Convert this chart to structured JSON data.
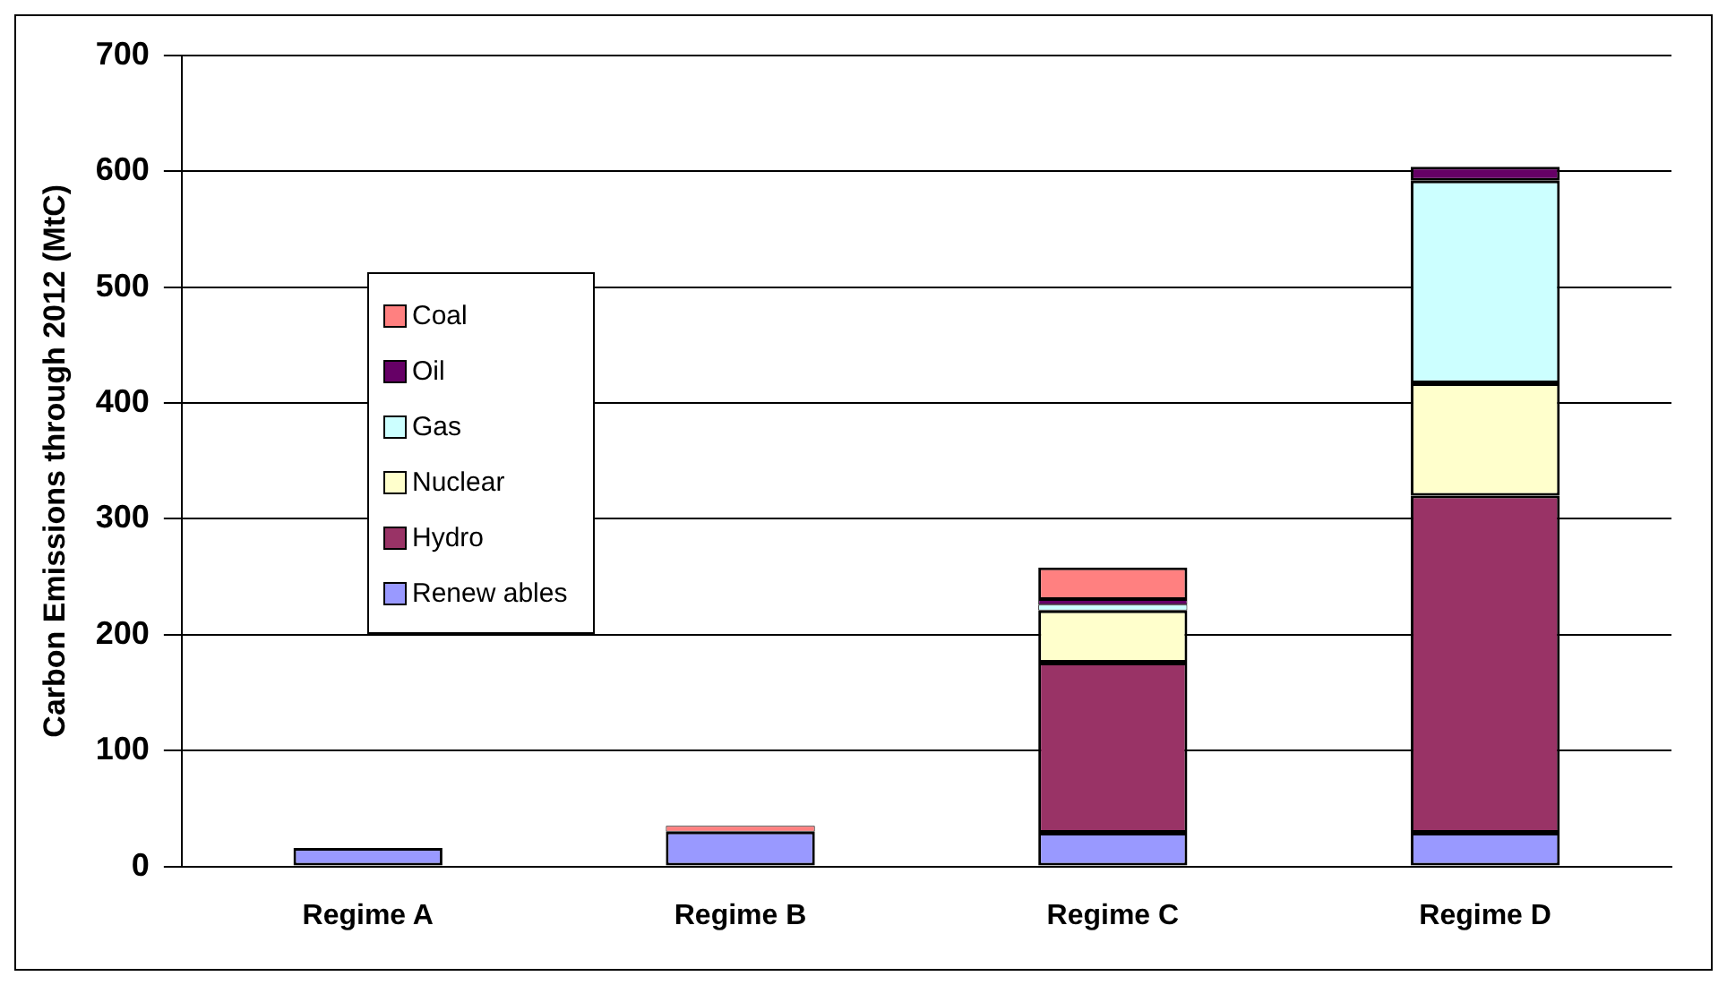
{
  "chart_data": {
    "type": "bar",
    "ylabel": "Carbon Emissions through 2012 (MtC)",
    "categories": [
      "Regime A",
      "Regime B",
      "Regime C",
      "Regime D"
    ],
    "stacked": true,
    "series": [
      {
        "name": "Renew ables",
        "color": "#9999ff",
        "values": [
          16,
          30,
          29,
          29
        ]
      },
      {
        "name": "Hydro",
        "color": "#993366",
        "values": [
          0,
          0,
          147,
          291
        ]
      },
      {
        "name": "Nuclear",
        "color": "#ffffcc",
        "values": [
          0,
          0,
          45,
          97
        ]
      },
      {
        "name": "Gas",
        "color": "#ccffff",
        "values": [
          0,
          0,
          5,
          175
        ]
      },
      {
        "name": "Oil",
        "color": "#660066",
        "values": [
          0,
          0,
          4,
          12
        ]
      },
      {
        "name": "Coal",
        "color": "#ff8080",
        "values": [
          0,
          5,
          28,
          0
        ]
      }
    ],
    "ylim": [
      0,
      700
    ],
    "yticks": [
      0,
      100,
      200,
      300,
      400,
      500,
      600,
      700
    ],
    "grid": "y",
    "legend": "left"
  }
}
